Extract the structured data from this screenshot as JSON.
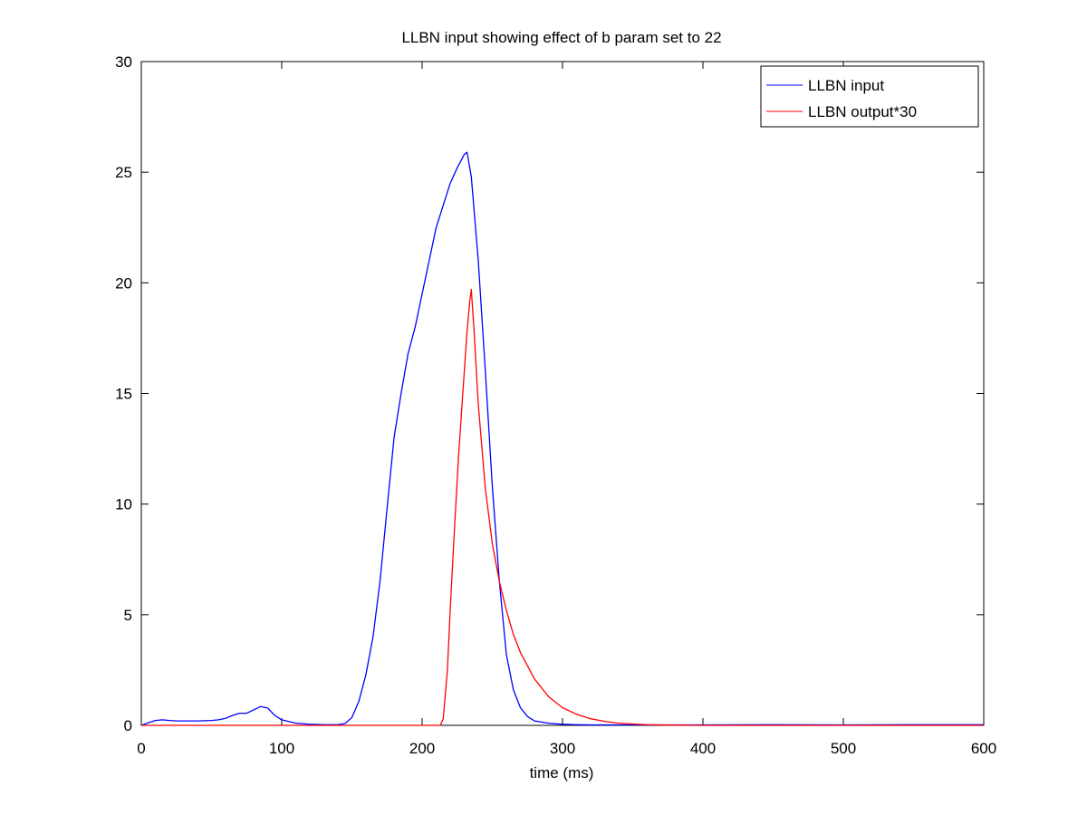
{
  "chart_data": {
    "type": "line",
    "title": "LLBN input showing effect of b param set to 22",
    "xlabel": "time (ms)",
    "ylabel": "",
    "xlim": [
      0,
      600
    ],
    "ylim": [
      0,
      30
    ],
    "xticks": [
      0,
      100,
      200,
      300,
      400,
      500,
      600
    ],
    "yticks": [
      0,
      5,
      10,
      15,
      20,
      25,
      30
    ],
    "grid": false,
    "legend_position": "top-right",
    "series": [
      {
        "name": "LLBN input",
        "color": "#0000ff",
        "x": [
          0,
          5,
          10,
          15,
          20,
          25,
          30,
          40,
          50,
          55,
          60,
          65,
          70,
          75,
          80,
          85,
          90,
          95,
          100,
          110,
          120,
          130,
          140,
          145,
          150,
          155,
          160,
          165,
          170,
          175,
          180,
          185,
          190,
          195,
          200,
          210,
          220,
          225,
          230,
          232,
          235,
          240,
          245,
          250,
          255,
          260,
          265,
          270,
          275,
          280,
          290,
          300,
          310,
          320,
          340,
          360,
          400,
          450,
          500,
          550,
          600
        ],
        "y": [
          0.0,
          0.12,
          0.22,
          0.25,
          0.22,
          0.2,
          0.2,
          0.2,
          0.22,
          0.25,
          0.32,
          0.45,
          0.55,
          0.55,
          0.7,
          0.85,
          0.78,
          0.45,
          0.25,
          0.1,
          0.05,
          0.03,
          0.03,
          0.08,
          0.35,
          1.1,
          2.3,
          4.0,
          6.5,
          9.8,
          13.0,
          15.0,
          16.8,
          18.0,
          19.5,
          22.5,
          24.5,
          25.2,
          25.8,
          25.9,
          24.8,
          21.0,
          16.0,
          10.8,
          6.5,
          3.2,
          1.6,
          0.8,
          0.4,
          0.2,
          0.1,
          0.05,
          0.03,
          0.02,
          0.02,
          0.02,
          0.02,
          0.03,
          0.02,
          0.03,
          0.03
        ]
      },
      {
        "name": "LLBN output*30",
        "color": "#ff0000",
        "x": [
          0,
          210,
          213,
          215,
          218,
          220,
          223,
          226,
          229,
          232,
          234,
          235,
          237,
          240,
          245,
          250,
          255,
          260,
          265,
          270,
          280,
          290,
          300,
          310,
          320,
          330,
          340,
          350,
          360,
          380,
          400,
          450,
          500,
          550,
          600
        ],
        "y": [
          0,
          0,
          0,
          0.3,
          2.5,
          5.2,
          8.8,
          12.2,
          15.0,
          17.8,
          19.2,
          19.7,
          17.8,
          14.5,
          10.7,
          8.2,
          6.5,
          5.2,
          4.1,
          3.3,
          2.1,
          1.3,
          0.8,
          0.5,
          0.3,
          0.18,
          0.1,
          0.06,
          0.03,
          0.01,
          0.0,
          0.0,
          0.0,
          0.0,
          0.0
        ]
      }
    ]
  }
}
